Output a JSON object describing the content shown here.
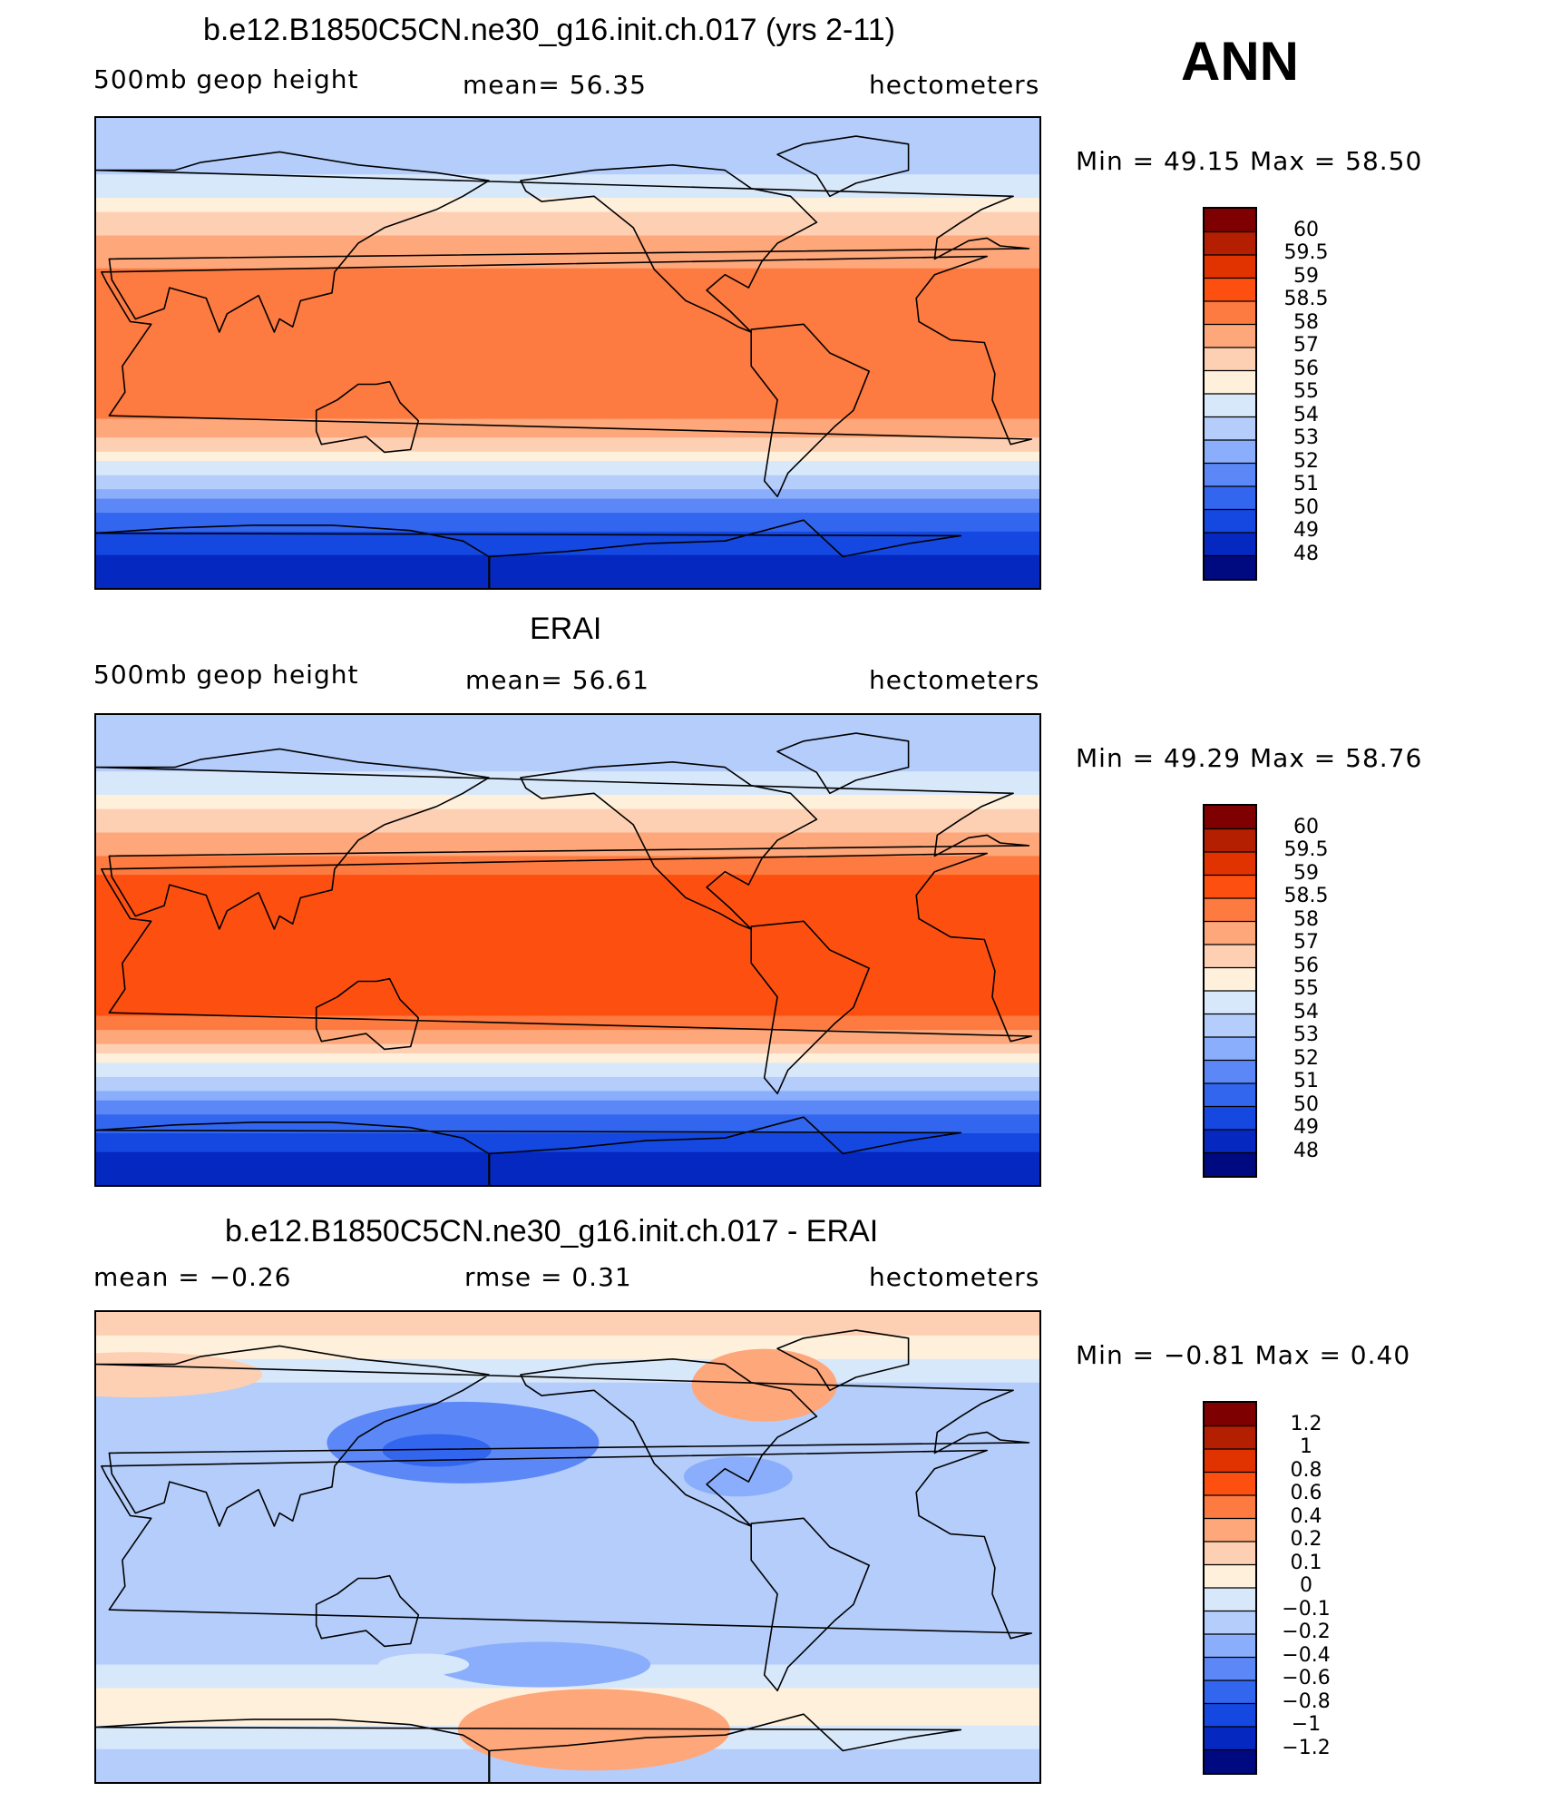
{
  "header": {
    "season": "ANN"
  },
  "panels": [
    {
      "id": "model",
      "title": "b.e12.B1850C5CN.ne30_g16.init.ch.017 (yrs 2-11)",
      "left_label": "500mb geop height",
      "center_label": "mean=  56.35",
      "units": "hectometers",
      "minmax": "Min =   49.15  Max =   58.50",
      "colorbar_labels": [
        "60",
        "59.5",
        "59",
        "58.5",
        "58",
        "57",
        "56",
        "55",
        "54",
        "53",
        "52",
        "51",
        "50",
        "49",
        "48"
      ],
      "colors": [
        "#7f0000",
        "#b31f00",
        "#e03300",
        "#fd5010",
        "#fd7a40",
        "#fda77a",
        "#fdd0b4",
        "#fff0dc",
        "#d8e8fb",
        "#b4cdfb",
        "#8aaefb",
        "#5c88f7",
        "#3366ef",
        "#1448e0",
        "#0428c0",
        "#000a80"
      ]
    },
    {
      "id": "obs",
      "title": "ERAI",
      "left_label": "500mb geop height",
      "center_label": "mean=  56.61",
      "units": "hectometers",
      "minmax": "Min =   49.29  Max =   58.76",
      "colorbar_labels": [
        "60",
        "59.5",
        "59",
        "58.5",
        "58",
        "57",
        "56",
        "55",
        "54",
        "53",
        "52",
        "51",
        "50",
        "49",
        "48"
      ],
      "colors": [
        "#7f0000",
        "#b31f00",
        "#e03300",
        "#fd5010",
        "#fd7a40",
        "#fda77a",
        "#fdd0b4",
        "#fff0dc",
        "#d8e8fb",
        "#b4cdfb",
        "#8aaefb",
        "#5c88f7",
        "#3366ef",
        "#1448e0",
        "#0428c0",
        "#000a80"
      ]
    },
    {
      "id": "diff",
      "title": "b.e12.B1850C5CN.ne30_g16.init.ch.017 - ERAI",
      "left_label": "mean =   −0.26",
      "center_label": "rmse =    0.31",
      "units": "hectometers",
      "minmax": "Min =   −0.81  Max =    0.40",
      "colorbar_labels": [
        "1.2",
        "1",
        "0.8",
        "0.6",
        "0.4",
        "0.2",
        "0.1",
        "0",
        "−0.1",
        "−0.2",
        "−0.4",
        "−0.6",
        "−0.8",
        "−1",
        "−1.2"
      ],
      "colors": [
        "#7f0000",
        "#b31f00",
        "#e03300",
        "#fd5010",
        "#fd7a40",
        "#fda77a",
        "#fdd0b4",
        "#fff0dc",
        "#d8e8fb",
        "#b4cdfb",
        "#8aaefb",
        "#5c88f7",
        "#3366ef",
        "#1448e0",
        "#0428c0",
        "#000a80"
      ]
    }
  ],
  "chart_data": [
    {
      "type": "heatmap",
      "title": "b.e12.B1850C5CN.ne30_g16.init.ch.017 (yrs 2-11)",
      "variable": "500mb geop height",
      "units": "hectometers",
      "mean": 56.35,
      "min": 49.15,
      "max": 58.5,
      "contour_levels": [
        48,
        49,
        50,
        51,
        52,
        53,
        54,
        55,
        56,
        57,
        58,
        58.5,
        59,
        59.5,
        60
      ],
      "zonal_bands": [
        {
          "y": 0.0,
          "level": 53
        },
        {
          "y": 0.12,
          "level": 54
        },
        {
          "y": 0.17,
          "level": 55
        },
        {
          "y": 0.2,
          "level": 56
        },
        {
          "y": 0.25,
          "level": 57
        },
        {
          "y": 0.32,
          "level": 58
        },
        {
          "y": 0.35,
          "level": 58
        },
        {
          "y": 0.64,
          "level": 57
        },
        {
          "y": 0.68,
          "level": 56
        },
        {
          "y": 0.71,
          "level": 55
        },
        {
          "y": 0.73,
          "level": 54
        },
        {
          "y": 0.76,
          "level": 53
        },
        {
          "y": 0.79,
          "level": 52
        },
        {
          "y": 0.81,
          "level": 51
        },
        {
          "y": 0.84,
          "level": 50
        },
        {
          "y": 0.88,
          "level": 49
        }
      ]
    },
    {
      "type": "heatmap",
      "title": "ERAI",
      "variable": "500mb geop height",
      "units": "hectometers",
      "mean": 56.61,
      "min": 49.29,
      "max": 58.76,
      "contour_levels": [
        48,
        49,
        50,
        51,
        52,
        53,
        54,
        55,
        56,
        57,
        58,
        58.5,
        59,
        59.5,
        60
      ],
      "zonal_bands": [
        {
          "y": 0.0,
          "level": 53
        },
        {
          "y": 0.12,
          "level": 54
        },
        {
          "y": 0.17,
          "level": 55
        },
        {
          "y": 0.2,
          "level": 56
        },
        {
          "y": 0.25,
          "level": 57
        },
        {
          "y": 0.3,
          "level": 58
        },
        {
          "y": 0.34,
          "level": 58.5
        },
        {
          "y": 0.64,
          "level": 58
        },
        {
          "y": 0.67,
          "level": 57
        },
        {
          "y": 0.7,
          "level": 56
        },
        {
          "y": 0.72,
          "level": 55
        },
        {
          "y": 0.74,
          "level": 54
        },
        {
          "y": 0.77,
          "level": 53
        },
        {
          "y": 0.8,
          "level": 52
        },
        {
          "y": 0.82,
          "level": 51
        },
        {
          "y": 0.85,
          "level": 50
        },
        {
          "y": 0.89,
          "level": 49
        }
      ]
    },
    {
      "type": "heatmap",
      "title": "b.e12.B1850C5CN.ne30_g16.init.ch.017 - ERAI",
      "units": "hectometers",
      "mean": -0.26,
      "rmse": 0.31,
      "min": -0.81,
      "max": 0.4,
      "contour_levels": [
        -1.2,
        -1,
        -0.8,
        -0.6,
        -0.4,
        -0.2,
        -0.1,
        0,
        0.1,
        0.2,
        0.4,
        0.6,
        0.8,
        1,
        1.2
      ],
      "base_level": -0.2,
      "zonal_bands": [
        {
          "y": 0.0,
          "level": 0.1
        },
        {
          "y": 0.05,
          "level": 0
        },
        {
          "y": 0.1,
          "level": -0.1
        },
        {
          "y": 0.15,
          "level": -0.2
        },
        {
          "y": 0.75,
          "level": -0.1
        },
        {
          "y": 0.8,
          "level": 0
        },
        {
          "y": 0.88,
          "level": -0.1
        },
        {
          "y": 0.94,
          "level": -0.2
        }
      ]
    }
  ]
}
